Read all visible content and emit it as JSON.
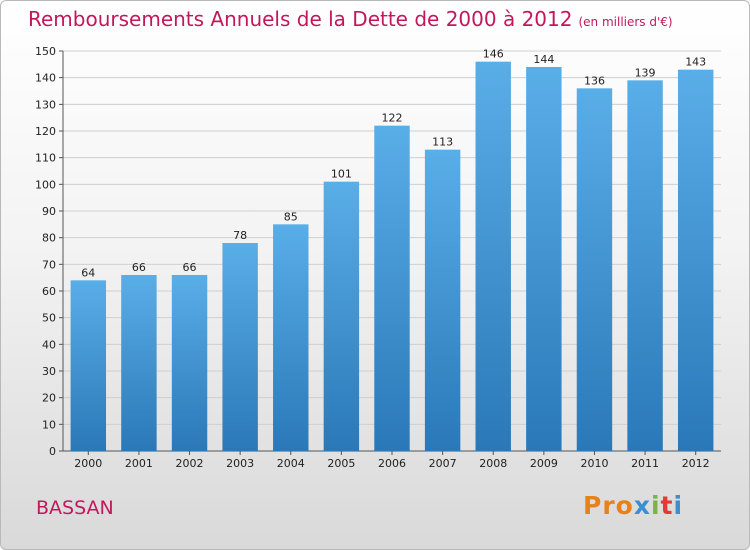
{
  "header": {
    "title": "Remboursements Annuels de la Dette de 2000 à 2012",
    "unit": "(en milliers d'€)"
  },
  "footer": {
    "city": "BASSAN",
    "logo_parts": [
      "Pro",
      "x",
      "i",
      "t",
      "i"
    ]
  },
  "colors": {
    "title": "#c2185b",
    "bar_top": "#5aaee8",
    "bar_bottom": "#2a78b8",
    "grid": "#cfcfcf"
  },
  "chart_data": {
    "type": "bar",
    "title": "Remboursements Annuels de la Dette de 2000 à 2012",
    "xlabel": "",
    "ylabel": "",
    "categories": [
      "2000",
      "2001",
      "2002",
      "2003",
      "2004",
      "2005",
      "2006",
      "2007",
      "2008",
      "2009",
      "2010",
      "2011",
      "2012"
    ],
    "values": [
      64,
      66,
      66,
      78,
      85,
      101,
      122,
      113,
      146,
      144,
      136,
      139,
      143
    ],
    "ylim": [
      0,
      150
    ],
    "yticks": [
      0,
      10,
      20,
      30,
      40,
      50,
      60,
      70,
      80,
      90,
      100,
      110,
      120,
      130,
      140,
      150
    ],
    "grid": true,
    "legend": "none"
  }
}
